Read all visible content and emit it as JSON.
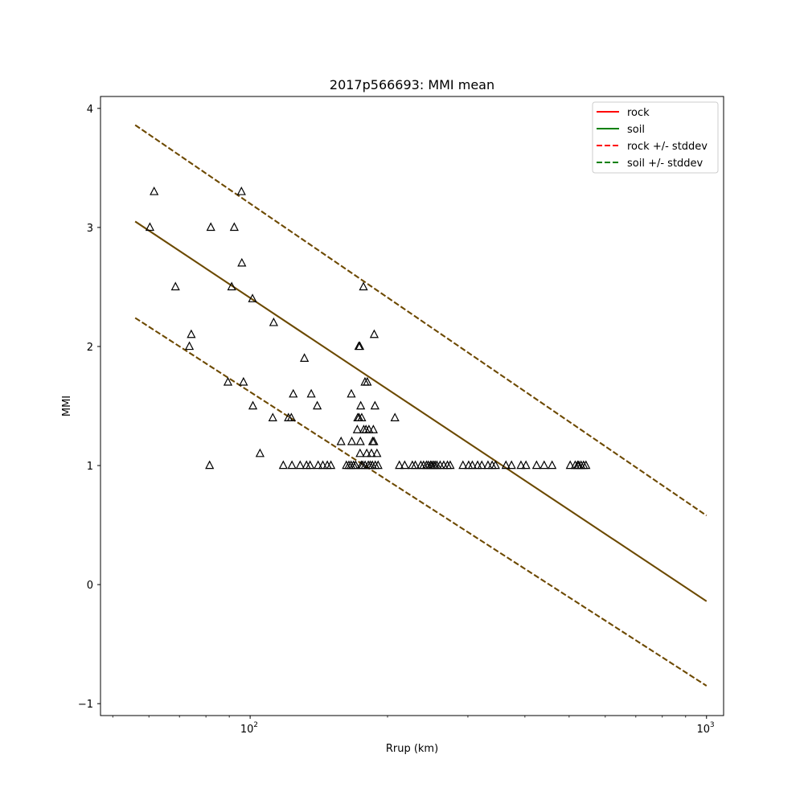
{
  "chart_data": {
    "type": "scatter",
    "title": "2017p566693: MMI mean",
    "xlabel": "Rrup (km)",
    "ylabel": "MMI",
    "xscale": "log",
    "xlim": [
      47,
      1090
    ],
    "ylim": [
      -1.1,
      4.1
    ],
    "xticks": [
      100,
      1000
    ],
    "xtick_labels": [
      "10",
      "10"
    ],
    "xtick_exponents": [
      "2",
      "3"
    ],
    "yticks": [
      -1,
      0,
      1,
      2,
      3,
      4
    ],
    "ytick_labels": [
      "−1",
      "0",
      "1",
      "2",
      "3",
      "4"
    ],
    "grid": false,
    "legend_position": "top-right",
    "colors": {
      "rock": "#ff0000",
      "soil": "#008000",
      "overlap": "#336600",
      "marker": "#000000"
    },
    "series": [
      {
        "name": "rock",
        "style": "solid",
        "color": "#ff0000",
        "x": [
          56,
          1000
        ],
        "y": [
          3.05,
          -0.14
        ]
      },
      {
        "name": "soil",
        "style": "solid",
        "color": "#008000",
        "x": [
          56,
          1000
        ],
        "y": [
          3.05,
          -0.14
        ]
      },
      {
        "name": "rock +/- stddev",
        "style": "dashed",
        "color": "#ff0000",
        "x": [
          56,
          1000
        ],
        "y": [
          3.86,
          0.58
        ],
        "y2": [
          2.24,
          -0.85
        ]
      },
      {
        "name": "soil +/- stddev",
        "style": "dashed",
        "color": "#008000",
        "x": [
          56,
          1000
        ],
        "y": [
          3.86,
          0.58
        ],
        "y2": [
          2.24,
          -0.85
        ]
      }
    ],
    "observations": {
      "marker": "triangle",
      "points": [
        [
          60.3,
          3.0
        ],
        [
          61.6,
          3.3
        ],
        [
          68.6,
          2.5
        ],
        [
          74.3,
          2.1
        ],
        [
          73.6,
          2.0
        ],
        [
          82.0,
          3.0
        ],
        [
          81.5,
          1.0
        ],
        [
          89.4,
          1.7
        ],
        [
          91.1,
          2.5
        ],
        [
          92.3,
          3.0
        ],
        [
          95.7,
          3.3
        ],
        [
          95.9,
          2.7
        ],
        [
          96.7,
          1.7
        ],
        [
          101.2,
          2.4
        ],
        [
          101.4,
          1.5
        ],
        [
          105.1,
          1.1
        ],
        [
          112.1,
          1.4
        ],
        [
          112.6,
          2.2
        ],
        [
          118.2,
          1.0
        ],
        [
          121.3,
          1.4
        ],
        [
          123.5,
          1.0
        ],
        [
          123.1,
          1.4
        ],
        [
          124.3,
          1.6
        ],
        [
          128.7,
          1.0
        ],
        [
          131.5,
          1.9
        ],
        [
          132.9,
          1.0
        ],
        [
          135.3,
          1.0
        ],
        [
          136.1,
          1.6
        ],
        [
          140.3,
          1.5
        ],
        [
          140.9,
          1.0
        ],
        [
          144.3,
          1.0
        ],
        [
          147.6,
          1.0
        ],
        [
          150.3,
          1.0
        ],
        [
          158.2,
          1.2
        ],
        [
          162.5,
          1.0
        ],
        [
          164.6,
          1.0
        ],
        [
          166.4,
          1.0
        ],
        [
          166.6,
          1.6
        ],
        [
          167.0,
          1.2
        ],
        [
          168.5,
          1.0
        ],
        [
          170.3,
          1.0
        ],
        [
          171.7,
          1.3
        ],
        [
          172.1,
          1.4
        ],
        [
          173.2,
          1.4
        ],
        [
          173.0,
          2.0
        ],
        [
          173.9,
          2.0
        ],
        [
          174.1,
          1.1
        ],
        [
          174.4,
          1.2
        ],
        [
          174.7,
          1.5
        ],
        [
          175.2,
          1.0
        ],
        [
          175.6,
          1.4
        ],
        [
          176.5,
          1.0
        ],
        [
          177.4,
          1.3
        ],
        [
          177.1,
          2.5
        ],
        [
          178.5,
          1.7
        ],
        [
          178.6,
          1.0
        ],
        [
          179.4,
          1.3
        ],
        [
          180.1,
          1.1
        ],
        [
          180.6,
          1.7
        ],
        [
          181.5,
          1.0
        ],
        [
          182.1,
          1.3
        ],
        [
          183.3,
          1.0
        ],
        [
          184.4,
          1.1
        ],
        [
          185.5,
          1.2
        ],
        [
          185.3,
          1.0
        ],
        [
          186.2,
          1.3
        ],
        [
          186.7,
          1.2
        ],
        [
          187.0,
          2.1
        ],
        [
          187.7,
          1.5
        ],
        [
          188.0,
          1.0
        ],
        [
          189.6,
          1.1
        ],
        [
          190.7,
          1.0
        ],
        [
          207.6,
          1.4
        ],
        [
          212.3,
          1.0
        ],
        [
          218.1,
          1.0
        ],
        [
          226.7,
          1.0
        ],
        [
          230.1,
          1.0
        ],
        [
          236.6,
          1.0
        ],
        [
          239.9,
          1.0
        ],
        [
          243.4,
          1.0
        ],
        [
          245.7,
          1.0
        ],
        [
          248.5,
          1.0
        ],
        [
          250.2,
          1.0
        ],
        [
          252.4,
          1.0
        ],
        [
          254.3,
          1.0
        ],
        [
          256.6,
          1.0
        ],
        [
          260.8,
          1.0
        ],
        [
          265.6,
          1.0
        ],
        [
          270.6,
          1.0
        ],
        [
          274.4,
          1.0
        ],
        [
          292.6,
          1.0
        ],
        [
          301.2,
          1.0
        ],
        [
          306.8,
          1.0
        ],
        [
          315.1,
          1.0
        ],
        [
          321.8,
          1.0
        ],
        [
          332.0,
          1.0
        ],
        [
          339.1,
          1.0
        ],
        [
          344.9,
          1.0
        ],
        [
          363.5,
          1.0
        ],
        [
          373.9,
          1.0
        ],
        [
          392.1,
          1.0
        ],
        [
          402.1,
          1.0
        ],
        [
          424.2,
          1.0
        ],
        [
          440.8,
          1.0
        ],
        [
          458.8,
          1.0
        ],
        [
          502.7,
          1.0
        ],
        [
          515.5,
          1.0
        ],
        [
          521.9,
          1.0
        ],
        [
          525.1,
          1.0
        ],
        [
          531.0,
          1.0
        ],
        [
          537.8,
          1.0
        ],
        [
          544.3,
          1.0
        ]
      ]
    }
  }
}
